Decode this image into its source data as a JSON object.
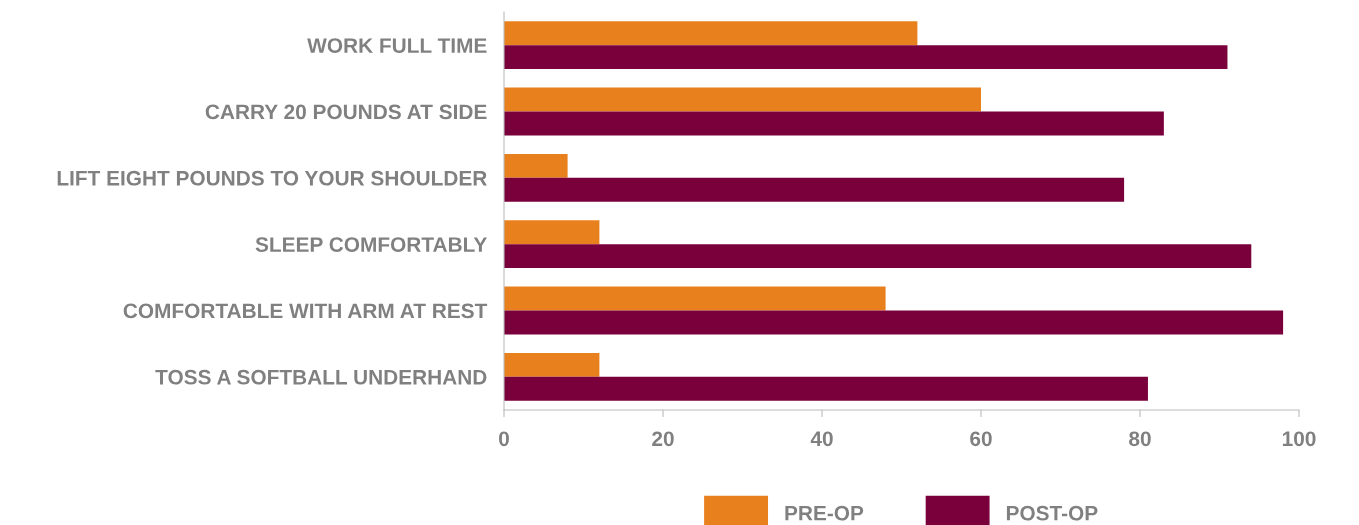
{
  "chart_data": {
    "type": "bar",
    "orientation": "horizontal",
    "categories": [
      "WORK FULL TIME",
      "CARRY 20 POUNDS AT SIDE",
      "LIFT EIGHT POUNDS TO YOUR SHOULDER",
      "SLEEP COMFORTABLY",
      "COMFORTABLE WITH ARM AT REST",
      "TOSS A SOFTBALL UNDERHAND"
    ],
    "series": [
      {
        "name": "PRE-OP",
        "color": "#e8801e",
        "values": [
          52,
          60,
          8,
          12,
          48,
          12
        ]
      },
      {
        "name": "POST-OP",
        "color": "#7a003c",
        "values": [
          91,
          83,
          78,
          94,
          98,
          81
        ]
      }
    ],
    "xlim": [
      0,
      100
    ],
    "xticks": [
      0,
      20,
      40,
      60,
      80,
      100
    ],
    "grid": false,
    "legend": "bottom"
  }
}
